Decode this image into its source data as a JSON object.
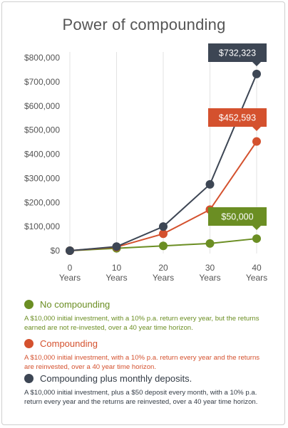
{
  "title": "Power of compounding",
  "chart_data": {
    "type": "line",
    "title": "Power of compounding",
    "categories": [
      "0 Years",
      "10 Years",
      "20 Years",
      "30 Years",
      "40 Years"
    ],
    "x_tick_labels": [
      [
        "0",
        "Years"
      ],
      [
        "10",
        "Years"
      ],
      [
        "20",
        "Years"
      ],
      [
        "30",
        "Years"
      ],
      [
        "40",
        "Years"
      ]
    ],
    "y_tick_labels": [
      "$0",
      "$100,000",
      "$200,000",
      "$300,000",
      "$400,000",
      "$500,000",
      "$600,000",
      "$700,000",
      "$800,000"
    ],
    "ylim": [
      0,
      800000
    ],
    "grid": "vertical",
    "series": [
      {
        "name": "No compounding",
        "color": "#6b8e23",
        "values": [
          0,
          10000,
          20000,
          30000,
          50000
        ],
        "callout": "$50,000"
      },
      {
        "name": "Compounding",
        "color": "#d4512e",
        "values": [
          0,
          15000,
          70000,
          170000,
          452593
        ],
        "callout": "$452,593"
      },
      {
        "name": "Compounding plus monthly deposits.",
        "color": "#3d4654",
        "values": [
          0,
          17000,
          100000,
          275000,
          732323
        ],
        "callout": "$732,323"
      }
    ]
  },
  "legend": [
    {
      "label": "No compounding",
      "desc": "A $10,000 initial investment, with a 10% p.a. return every year, but the returns earned are not re-invested, over a 40 year time horizon."
    },
    {
      "label": "Compounding",
      "desc": "A $10,000 initial investment, with a 10% p.a. return every year and the returns are reinvested, over a 40 year time horizon."
    },
    {
      "label": "Compounding plus monthly deposits.",
      "desc": "A $10,000 initial investment, plus a $50 deposit every month, with a 10% p.a. return every year and the returns are reinvested, over a 40 year time horizon."
    }
  ]
}
